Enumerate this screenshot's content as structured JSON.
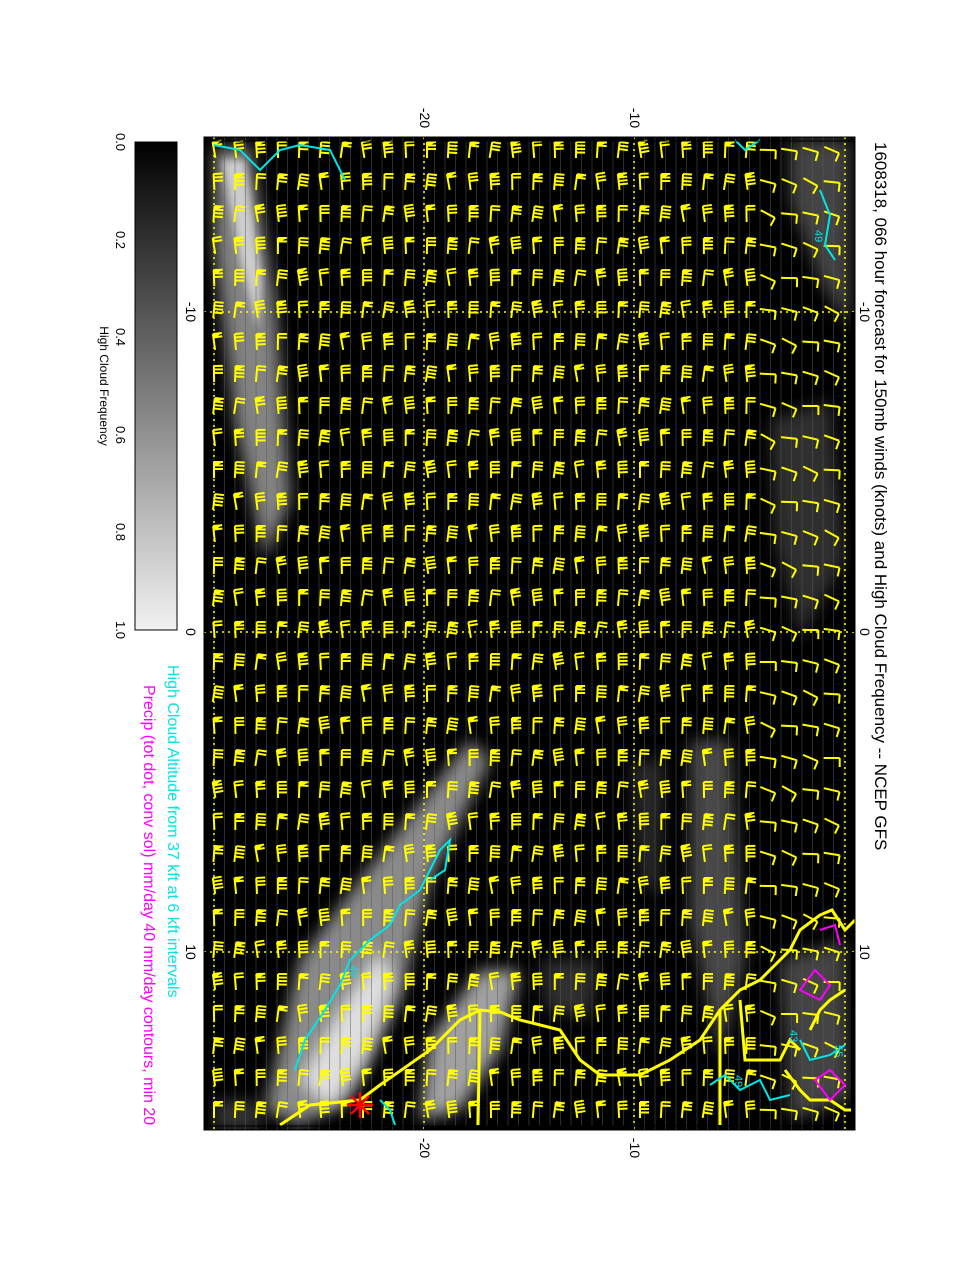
{
  "title": "1608318, 066 hour forecast for 150mb winds (knots) and High Cloud Frequency -- NCEP GFS",
  "legend_cyan": "High Cloud Altitude from 37 kft at 6 kft intervals",
  "legend_magenta": "Precip (tot dot, conv sol) mm/day 40 mm/day contours, min 20",
  "colorbar": {
    "label": "High Cloud Frequency",
    "ticks": [
      "0.0",
      "0.2",
      "0.4",
      "0.6",
      "0.8",
      "1.0"
    ]
  },
  "axes": {
    "left_ticks": [
      "-20",
      "-10"
    ],
    "right_ticks": [
      "-20",
      "-10"
    ],
    "top_ticks": [
      "-10",
      "0",
      "10"
    ],
    "bottom_ticks": [
      "-10",
      "0",
      "10"
    ]
  },
  "contour_labels": [
    "49",
    "49",
    "43",
    "49",
    "55"
  ],
  "colors": {
    "background": "#000000",
    "wind_barbs": "#ffff00",
    "coastline": "#ffff00",
    "cloud_altitude": "#00e5e5",
    "precip": "#ff00ff",
    "marker": "#ff0000",
    "grid": "#ffff00"
  }
}
